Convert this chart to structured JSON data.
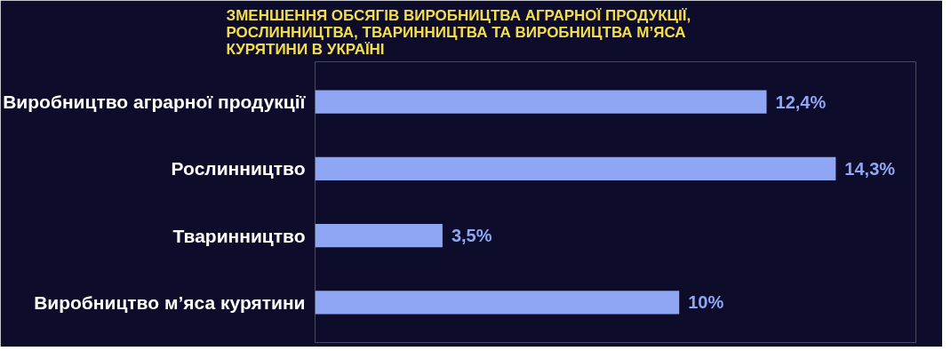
{
  "chart_data": {
    "type": "bar",
    "orientation": "horizontal",
    "title": "ЗМЕНШЕННЯ ОБСЯГІВ ВИРОБНИЦТВА АГРАРНОЇ ПРОДУКЦІЇ, РОСЛИННИЦТВА, ТВАРИННИЦТВА ТА ВИРОБНИЦТВА М’ЯСА КУРЯТИНИ В УКРАЇНІ",
    "categories": [
      "Виробництво аграрної продукції",
      "Рослинництво",
      "Тваринництво",
      "Виробництво м’яса курятини"
    ],
    "values": [
      12.4,
      14.3,
      3.5,
      10
    ],
    "value_labels": [
      "12,4%",
      "14,3%",
      "3,5%",
      "10%"
    ],
    "color": "#8ea6f4",
    "xlim": [
      0,
      16.5
    ],
    "tick_labels": "y",
    "grid": false
  }
}
